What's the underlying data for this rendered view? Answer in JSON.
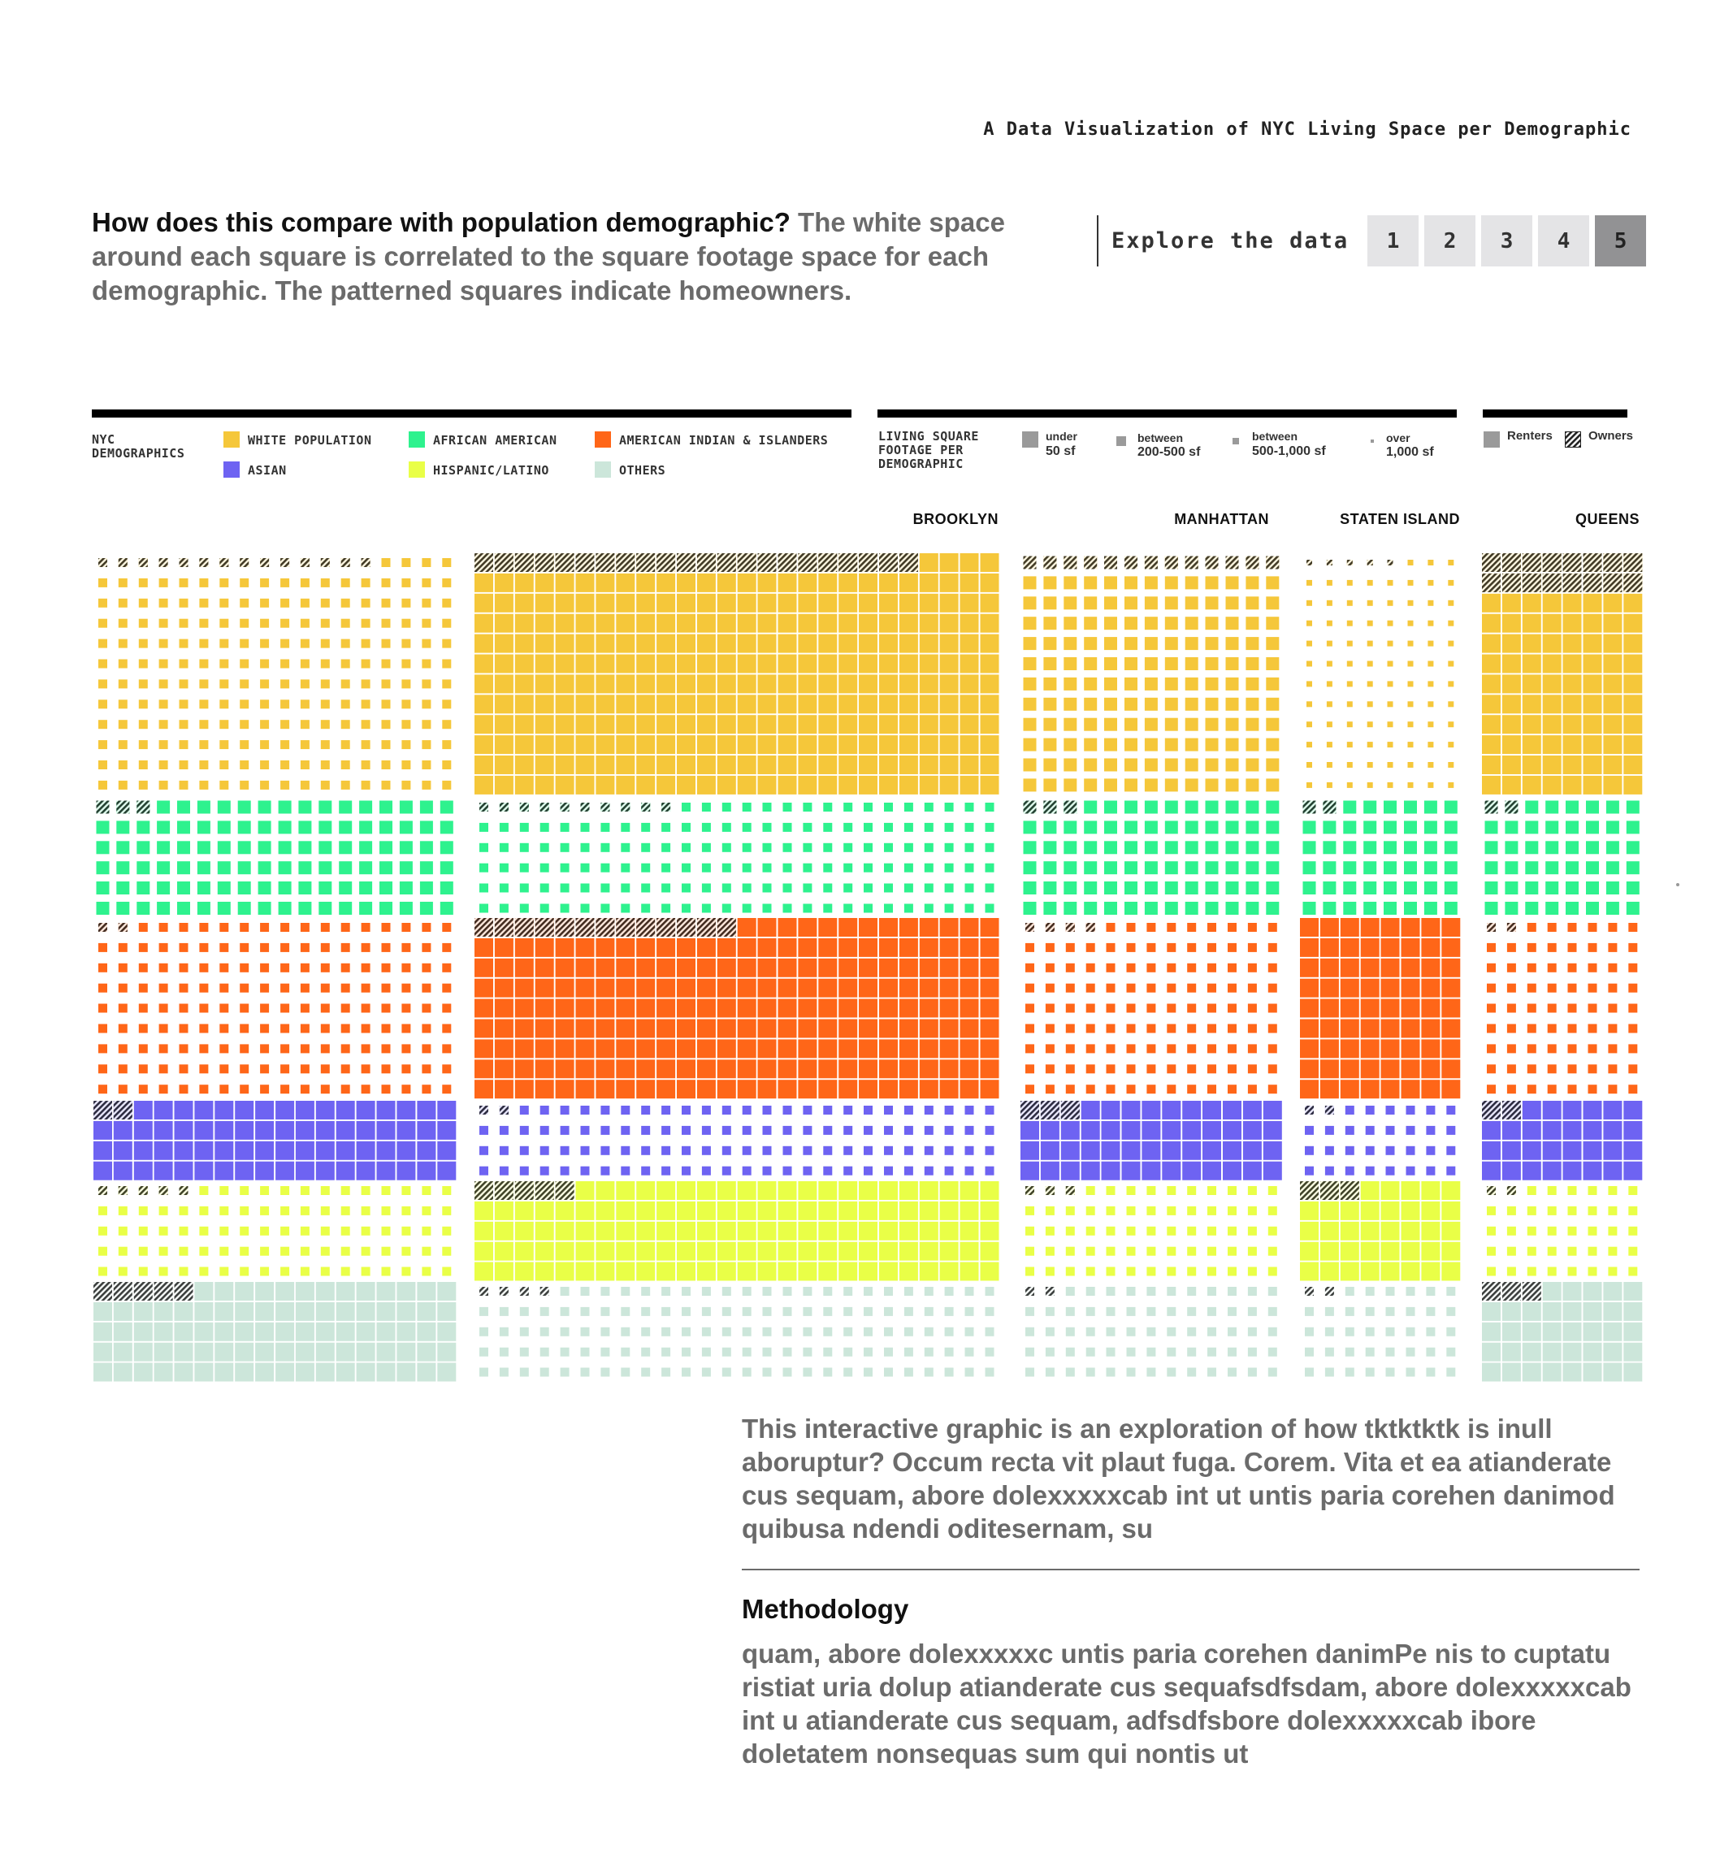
{
  "header": {
    "title": "A Data Visualization of NYC Living Space per Demographic",
    "intro_lead": "How does this compare with population demographic?",
    "intro_rest": " The white space around each square is correlated to the square footage space for each demographic. The patterned squares indicate homeowners."
  },
  "explore": {
    "label": "Explore the data",
    "pages": [
      "1",
      "2",
      "3",
      "4",
      "5"
    ],
    "active_page": "5"
  },
  "legend": {
    "demographics_title": "NYC DEMOGRAPHICS",
    "demographics": [
      {
        "key": "white",
        "label": "WHITE POPULATION",
        "color": "#F5C73A"
      },
      {
        "key": "african",
        "label": "AFRICAN AMERICAN",
        "color": "#2EF28E"
      },
      {
        "key": "indian",
        "label": "AMERICAN INDIAN & ISLANDERS",
        "color": "#FF6618"
      },
      {
        "key": "asian",
        "label": "ASIAN",
        "color": "#6E63F2"
      },
      {
        "key": "hispanic",
        "label": "HISPANIC/LATINO",
        "color": "#E9FF47"
      },
      {
        "key": "others",
        "label": "OTHERS",
        "color": "#CCE6DA"
      }
    ],
    "sqft_title": "LIVING SQUARE FOOTAGE PER DEMOGRAPHIC",
    "sqft_levels": [
      {
        "line1": "under",
        "line2": "50 sf"
      },
      {
        "line1": "between",
        "line2": "200-500 sf"
      },
      {
        "line1": "between",
        "line2": "500-1,000 sf"
      },
      {
        "line1": "over",
        "line2": "1,000 sf"
      }
    ],
    "tenure": [
      {
        "label": "Renters"
      },
      {
        "label": "Owners"
      }
    ],
    "swatch_gray": "#9a9a9a"
  },
  "chart_data": {
    "type": "waffle",
    "boroughs": [
      {
        "name": "",
        "cols": 18,
        "rows": {
          "white": 12,
          "african": 6,
          "indian": 9,
          "asian": 4,
          "hispanic": 5,
          "others": 5
        },
        "sizes": {
          "white": 2,
          "african": 1,
          "indian": 2,
          "asian": 0,
          "hispanic": 2,
          "others": 0
        },
        "owners": {
          "white": 14,
          "african": 3,
          "indian": 2,
          "asian": 2,
          "hispanic": 5,
          "others": 5
        }
      },
      {
        "name": "BROOKLYN",
        "cols": 26,
        "rows": {
          "white": 12,
          "african": 6,
          "indian": 9,
          "asian": 4,
          "hispanic": 5,
          "others": 5
        },
        "sizes": {
          "white": 0,
          "african": 2,
          "indian": 0,
          "asian": 2,
          "hispanic": 0,
          "others": 2
        },
        "owners": {
          "white": 22,
          "african": 10,
          "indian": 13,
          "asian": 2,
          "hispanic": 5,
          "others": 4
        }
      },
      {
        "name": "MANHATTAN",
        "cols": 13,
        "rows": {
          "white": 12,
          "african": 6,
          "indian": 9,
          "asian": 4,
          "hispanic": 5,
          "others": 5
        },
        "sizes": {
          "white": 1,
          "african": 1,
          "indian": 2,
          "asian": 0,
          "hispanic": 2,
          "others": 2
        },
        "owners": {
          "white": 13,
          "african": 3,
          "indian": 4,
          "asian": 3,
          "hispanic": 3,
          "others": 2
        }
      },
      {
        "name": "STATEN ISLAND",
        "cols": 8,
        "rows": {
          "white": 12,
          "african": 6,
          "indian": 9,
          "asian": 4,
          "hispanic": 5,
          "others": 5
        },
        "sizes": {
          "white": 3,
          "african": 1,
          "indian": 0,
          "asian": 2,
          "hispanic": 0,
          "others": 2
        },
        "owners": {
          "white": 5,
          "african": 2,
          "indian": 0,
          "asian": 2,
          "hispanic": 3,
          "others": 2
        }
      },
      {
        "name": "QUEENS",
        "cols": 8,
        "rows": {
          "white": 12,
          "african": 6,
          "indian": 9,
          "asian": 4,
          "hispanic": 5,
          "others": 5
        },
        "sizes": {
          "white": 0,
          "african": 1,
          "indian": 2,
          "asian": 0,
          "hispanic": 2,
          "others": 0
        },
        "owners": {
          "white": 16,
          "african": 2,
          "indian": 2,
          "asian": 2,
          "hispanic": 2,
          "others": 3
        }
      }
    ]
  },
  "body": {
    "text": "This interactive graphic is an exploration of how tktktktk is inull aboruptur? Occum recta vit plaut fuga. Corem. Vita et ea atianderate cus sequam, abore dolexxxxxcab int ut untis paria corehen danimod quibusa ndendi oditesernam, su",
    "methodology_title": "Methodology",
    "methodology_text": "quam, abore dolexxxxxc untis paria corehen danimPe nis to cuptatu ristiat uria dolup atianderate cus sequafsdfsdam, abore dolexxxxxcab int u atianderate cus sequam, adfsdfsbore dolexxxxxcab ibore doletatem nonsequas sum qui nontis ut"
  }
}
